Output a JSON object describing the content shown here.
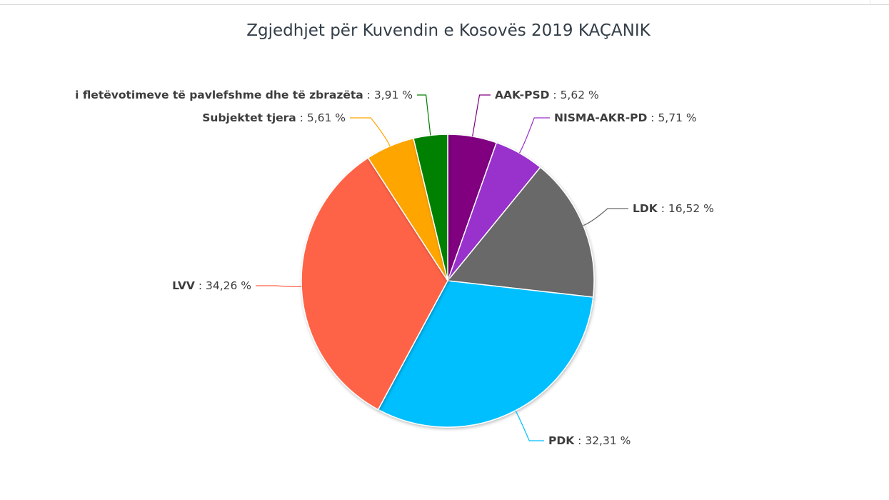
{
  "chart_data": {
    "type": "pie",
    "title": "Zgjedhjet për Kuvendin e Kosovës 2019 KAÇANIK",
    "slices": [
      {
        "name": "AAK-PSD",
        "value": 5.62,
        "label_value": "5,62 %",
        "color": "#800080"
      },
      {
        "name": "NISMA-AKR-PD",
        "value": 5.71,
        "label_value": "5,71 %",
        "color": "#9932cc"
      },
      {
        "name": "LDK",
        "value": 16.52,
        "label_value": "16,52 %",
        "color": "#696969"
      },
      {
        "name": "PDK",
        "value": 32.31,
        "label_value": "32,31 %",
        "color": "#00bfff"
      },
      {
        "name": "LVV",
        "value": 34.26,
        "label_value": "34,26 %",
        "color": "#ff6347"
      },
      {
        "name": "Subjektet tjera",
        "value": 5.61,
        "label_value": "5,61 %",
        "color": "#ffa500"
      },
      {
        "name": "i fletëvotimeve të pavlefshme dhe të zbrazëta",
        "value": 3.91,
        "label_value": "3,91 %",
        "color": "#008000"
      }
    ]
  }
}
